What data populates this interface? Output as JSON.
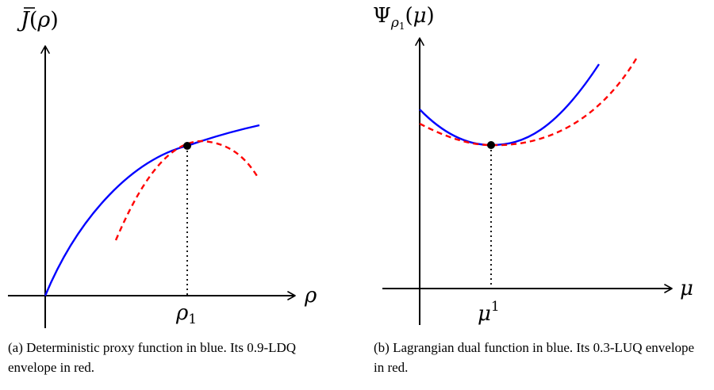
{
  "figure": {
    "panel_a": {
      "y_axis_label": "J̄(ρ)",
      "x_axis_label": "ρ",
      "tick_label": "ρ1",
      "caption": "(a) Deterministic proxy function in blue. Its 0.9-LDQ envelope in red.",
      "series": [
        {
          "color": "#0000ff",
          "style": "solid"
        },
        {
          "color": "#ff0000",
          "style": "dashed"
        }
      ]
    },
    "panel_b": {
      "y_axis_label": "Ψρ1(μ)",
      "x_axis_label": "μ",
      "tick_label": "μ1",
      "caption": "(b) Lagrangian dual function in blue. Its 0.3-LUQ envelope in red.",
      "series": [
        {
          "color": "#0000ff",
          "style": "solid"
        },
        {
          "color": "#ff0000",
          "style": "dashed"
        }
      ]
    }
  }
}
